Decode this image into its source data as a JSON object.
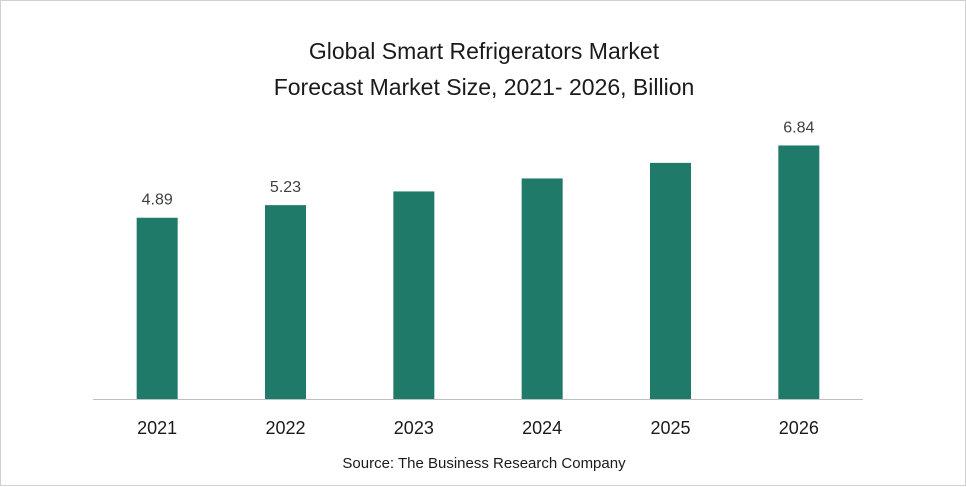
{
  "chart_data": {
    "type": "bar",
    "title_line1": "Global Smart Refrigerators Market",
    "title_line2": "Forecast Market Size, 2021- 2026, Billion",
    "categories": [
      "2021",
      "2022",
      "2023",
      "2024",
      "2025",
      "2026"
    ],
    "values": [
      4.89,
      5.23,
      5.6,
      5.95,
      6.37,
      6.84
    ],
    "data_labels": [
      "4.89",
      "5.23",
      "",
      "",
      "",
      "6.84"
    ],
    "ylim": [
      0,
      7.5
    ],
    "grid": false,
    "bar_color": "#1f7a6a"
  },
  "source": "Source: The Business Research Company"
}
